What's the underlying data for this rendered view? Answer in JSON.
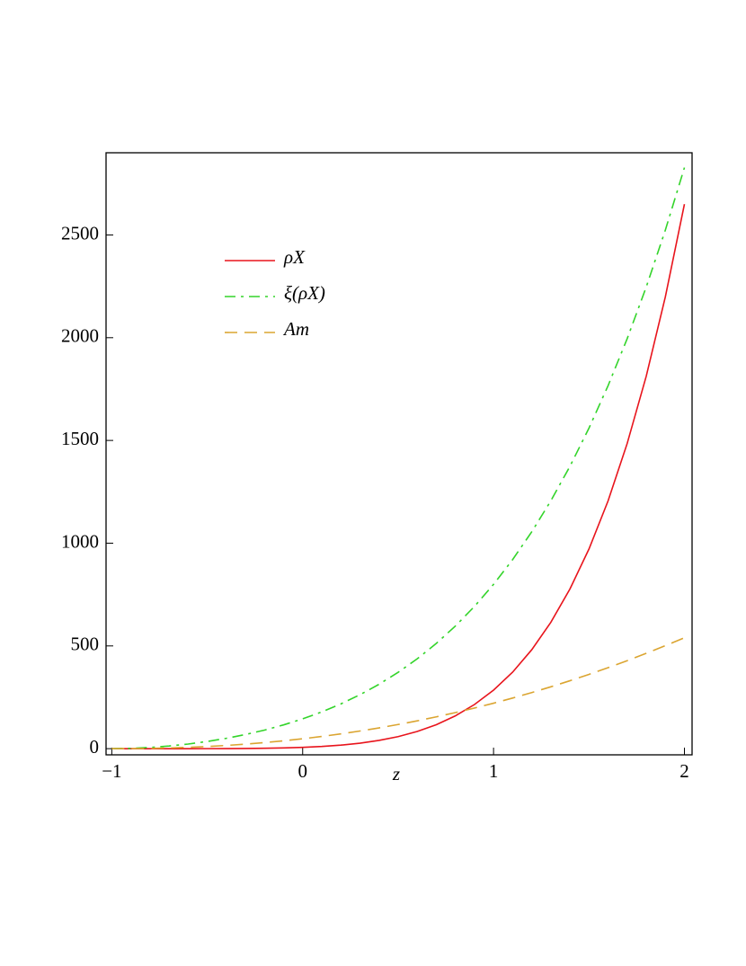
{
  "chart_data": {
    "type": "line",
    "x_label": "z",
    "xlim": [
      -1.03,
      2.04
    ],
    "ylim": [
      -30,
      2900
    ],
    "xticks": [
      {
        "value": -1,
        "label": "−1"
      },
      0,
      1,
      2
    ],
    "yticks": [
      0,
      500,
      1000,
      1500,
      2000,
      2500
    ],
    "legend": "upper left",
    "x": [
      -1,
      -0.9,
      -0.8,
      -0.7,
      -0.6,
      -0.5,
      -0.4,
      -0.3,
      -0.2,
      -0.1,
      0,
      0.1,
      0.2,
      0.3,
      0.4,
      0.5,
      0.6,
      0.7,
      0.8,
      0.9,
      1,
      1.1,
      1.2,
      1.3,
      1.4,
      1.5,
      1.6,
      1.7,
      1.8,
      1.9,
      2
    ],
    "series": [
      {
        "name": "ρX",
        "color": "#e8141c",
        "dash": "solid",
        "values": [
          0,
          0,
          0,
          0,
          0,
          0.1,
          0.4,
          0.9,
          1.8,
          3.5,
          6.3,
          10.6,
          17.1,
          26.7,
          40.1,
          58.6,
          83.6,
          116.6,
          159.6,
          214.9,
          284.9,
          372.5,
          481.3,
          614.8,
          776.7,
          972,
          1206,
          1485,
          1813,
          2199,
          2650
        ]
      },
      {
        "name": "ξ(ρX)",
        "color": "#33d42a",
        "dash": "dashdot",
        "values": [
          0,
          1.5,
          5.8,
          12.8,
          22.5,
          35,
          50.3,
          68.7,
          90.3,
          115.7,
          145,
          178.9,
          217.8,
          262.4,
          313.3,
          371.4,
          437.2,
          512.2,
          596.7,
          692.2,
          799.6,
          920.2,
          1055.1,
          1205.9,
          1373.7,
          1560.2,
          1766.7,
          1995.1,
          2246.9,
          2523.8,
          2827.8
        ]
      },
      {
        "name": "Am",
        "color": "#dba531",
        "dash": "dashed",
        "values": [
          0,
          0.3,
          1.4,
          3.4,
          6.4,
          10.5,
          15.7,
          22,
          29.5,
          38.2,
          48.2,
          59.4,
          71.9,
          85.8,
          101,
          117.5,
          135.4,
          154.8,
          175.5,
          197.7,
          221.3,
          246.4,
          272.9,
          301,
          330.5,
          361.6,
          394.2,
          428.2,
          464,
          501.2,
          540
        ]
      }
    ]
  }
}
